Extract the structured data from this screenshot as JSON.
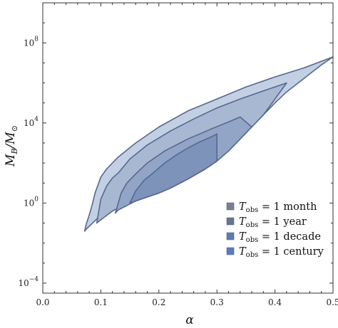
{
  "chart_data": {
    "type": "area",
    "xlabel": "α",
    "ylabel_main": "M",
    "ylabel_sub_1": "B",
    "ylabel_slash": "/M",
    "ylabel_sub_2": "⊙",
    "xlim": [
      0.0,
      0.5
    ],
    "ylim_log10": [
      -4.5,
      10
    ],
    "y_scale": "log",
    "x_ticks": [
      {
        "value": 0.0,
        "label": "0.0"
      },
      {
        "value": 0.1,
        "label": "0.1"
      },
      {
        "value": 0.2,
        "label": "0.2"
      },
      {
        "value": 0.3,
        "label": "0.3"
      },
      {
        "value": 0.4,
        "label": "0.4"
      },
      {
        "value": 0.5,
        "label": "0.5"
      }
    ],
    "y_ticks": [
      {
        "log10": -4,
        "label_base": "10",
        "label_exp": "−4"
      },
      {
        "log10": 0,
        "label_base": "10",
        "label_exp": "0"
      },
      {
        "log10": 4,
        "label_base": "10",
        "label_exp": "4"
      },
      {
        "log10": 8,
        "label_base": "10",
        "label_exp": "8"
      }
    ],
    "grid": false,
    "legend_position": "bottom-right",
    "series": [
      {
        "name_T": "T",
        "name_sub": "obs",
        "name_rest": " = 1 month",
        "color": "#c3cfe3",
        "boundary_alpha_log10M": [
          [
            0.072,
            -1.4
          ],
          [
            0.075,
            -1.05
          ],
          [
            0.08,
            -0.6
          ],
          [
            0.085,
            -0.1
          ],
          [
            0.09,
            0.5
          ],
          [
            0.095,
            0.9
          ],
          [
            0.1,
            1.3
          ],
          [
            0.11,
            1.7
          ],
          [
            0.13,
            2.3
          ],
          [
            0.16,
            3.0
          ],
          [
            0.2,
            3.8
          ],
          [
            0.25,
            4.6
          ],
          [
            0.3,
            5.2
          ],
          [
            0.35,
            5.8
          ],
          [
            0.4,
            6.3
          ],
          [
            0.45,
            6.75
          ],
          [
            0.5,
            7.3
          ],
          [
            0.48,
            6.9
          ],
          [
            0.46,
            6.45
          ],
          [
            0.44,
            6.0
          ],
          [
            0.42,
            5.55
          ],
          [
            0.4,
            5.0
          ],
          [
            0.38,
            4.4
          ],
          [
            0.36,
            3.8
          ],
          [
            0.34,
            3.2
          ],
          [
            0.32,
            2.6
          ],
          [
            0.3,
            2.1
          ],
          [
            0.28,
            1.7
          ],
          [
            0.25,
            1.2
          ],
          [
            0.22,
            0.75
          ],
          [
            0.2,
            0.5
          ],
          [
            0.15,
            0.05
          ],
          [
            0.1,
            -0.6
          ],
          [
            0.075,
            -1.3
          ]
        ]
      },
      {
        "name_T": "T",
        "name_sub": "obs",
        "name_rest": " = 1 year",
        "color": "#a9b8d2",
        "boundary_alpha_log10M": [
          [
            0.093,
            -1.0
          ],
          [
            0.1,
            0.2
          ],
          [
            0.11,
            0.85
          ],
          [
            0.12,
            1.25
          ],
          [
            0.13,
            1.5
          ],
          [
            0.15,
            2.2
          ],
          [
            0.18,
            2.9
          ],
          [
            0.22,
            3.6
          ],
          [
            0.26,
            4.2
          ],
          [
            0.3,
            4.75
          ],
          [
            0.34,
            5.2
          ],
          [
            0.38,
            5.6
          ],
          [
            0.42,
            6.0
          ],
          [
            0.4,
            5.2
          ],
          [
            0.38,
            4.4
          ],
          [
            0.36,
            3.8
          ],
          [
            0.34,
            3.2
          ],
          [
            0.32,
            2.6
          ],
          [
            0.3,
            2.1
          ],
          [
            0.28,
            1.7
          ],
          [
            0.25,
            1.2
          ],
          [
            0.22,
            0.75
          ],
          [
            0.2,
            0.5
          ],
          [
            0.15,
            0.05
          ],
          [
            0.12,
            -0.4
          ],
          [
            0.095,
            -0.95
          ]
        ]
      },
      {
        "name_T": "T",
        "name_sub": "obs",
        "name_rest": " = 1 decade",
        "color": "#93a5c6",
        "boundary_alpha_log10M": [
          [
            0.125,
            -0.5
          ],
          [
            0.135,
            0.5
          ],
          [
            0.145,
            1.0
          ],
          [
            0.16,
            1.45
          ],
          [
            0.18,
            2.0
          ],
          [
            0.21,
            2.6
          ],
          [
            0.25,
            3.2
          ],
          [
            0.29,
            3.7
          ],
          [
            0.32,
            4.05
          ],
          [
            0.34,
            4.3
          ],
          [
            0.36,
            3.8
          ],
          [
            0.34,
            3.2
          ],
          [
            0.32,
            2.6
          ],
          [
            0.3,
            2.1
          ],
          [
            0.28,
            1.7
          ],
          [
            0.25,
            1.2
          ],
          [
            0.22,
            0.75
          ],
          [
            0.2,
            0.5
          ],
          [
            0.16,
            0.1
          ],
          [
            0.13,
            -0.35
          ]
        ]
      },
      {
        "name_T": "T",
        "name_sub": "obs",
        "name_rest": " = 1 century",
        "color": "#7e93b9",
        "boundary_alpha_log10M": [
          [
            0.15,
            0.0
          ],
          [
            0.16,
            0.6
          ],
          [
            0.175,
            1.15
          ],
          [
            0.19,
            1.5
          ],
          [
            0.21,
            2.0
          ],
          [
            0.23,
            2.4
          ],
          [
            0.25,
            2.75
          ],
          [
            0.27,
            3.05
          ],
          [
            0.29,
            3.3
          ],
          [
            0.3,
            3.45
          ],
          [
            0.3,
            2.1
          ],
          [
            0.28,
            1.7
          ],
          [
            0.25,
            1.2
          ],
          [
            0.22,
            0.75
          ],
          [
            0.2,
            0.5
          ],
          [
            0.18,
            0.3
          ],
          [
            0.155,
            0.05
          ]
        ]
      }
    ]
  }
}
